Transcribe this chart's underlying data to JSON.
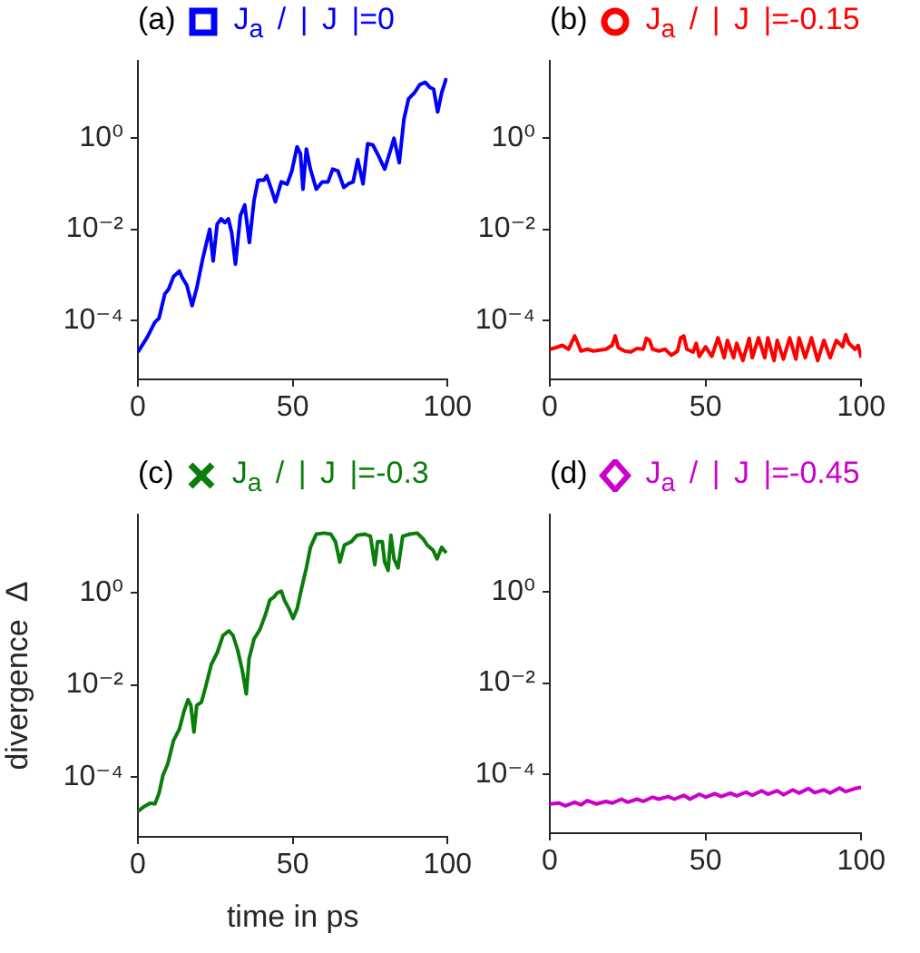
{
  "chart_data": [
    {
      "type": "line",
      "title": "(a)",
      "legend": "top",
      "log": "y",
      "xlim": [
        0,
        100
      ],
      "xticks": [
        0,
        50,
        100
      ],
      "ylim": [
        5e-06,
        50
      ],
      "yticks": [
        {
          "value": 0.0001,
          "label": "10⁻⁴"
        },
        {
          "value": 0.01,
          "label": "10⁻²"
        },
        {
          "value": 1,
          "label": "10⁰"
        }
      ],
      "series": [
        {
          "name": "J$_{a}$ / | J |=0",
          "color": "#0000ff",
          "x": [
            0,
            3,
            5.5,
            6.8,
            8.7,
            9.9,
            11.5,
            13.4,
            14.3,
            15.8,
            17.5,
            19,
            20.9,
            23.2,
            24.3,
            25.6,
            26.9,
            28.1,
            29.2,
            30.3,
            31.5,
            33.1,
            34.5,
            36,
            37.5,
            38.8,
            40.7,
            41.6,
            43.1,
            44.4,
            46.3,
            48.2,
            49.7,
            51.4,
            52.5,
            53.3,
            54.4,
            55.7,
            57.6,
            59.5,
            61.4,
            62.9,
            64.6,
            66.5,
            68,
            69.5,
            71,
            72.7,
            74.2,
            75.9,
            77.4,
            79.7,
            81.2,
            82.7,
            84.4,
            85.9,
            87.4,
            89.3,
            91,
            92.8,
            94.4,
            95.5,
            96.8,
            98.1,
            99.6
          ],
          "values": [
            2e-05,
            4.2e-05,
            9.1e-05,
            0.00011,
            0.00038,
            0.00048,
            0.00091,
            0.0012,
            0.00087,
            0.00059,
            0.00021,
            0.00051,
            0.0022,
            0.01,
            0.002,
            0.013,
            0.017,
            0.014,
            0.017,
            0.0083,
            0.0017,
            0.02,
            0.034,
            0.0051,
            0.043,
            0.12,
            0.12,
            0.15,
            0.076,
            0.04,
            0.11,
            0.098,
            0.19,
            0.65,
            0.45,
            0.076,
            0.58,
            0.21,
            0.076,
            0.11,
            0.11,
            0.21,
            0.19,
            0.083,
            0.1,
            0.11,
            0.34,
            0.1,
            0.76,
            0.71,
            0.45,
            0.21,
            0.45,
            1.0,
            0.29,
            2.6,
            7.4,
            10,
            15,
            17,
            13,
            12,
            3.8,
            10,
            21
          ]
        }
      ]
    },
    {
      "type": "line",
      "title": "(b)",
      "legend": "top",
      "log": "y",
      "xlim": [
        0,
        100
      ],
      "xticks": [
        0,
        50,
        100
      ],
      "ylim": [
        5e-06,
        50
      ],
      "yticks": [
        {
          "value": 0.0001,
          "label": "10⁻⁴"
        },
        {
          "value": 0.01,
          "label": "10⁻²"
        },
        {
          "value": 1,
          "label": "10⁰"
        }
      ],
      "series": [
        {
          "name": "J$_{a}$ / | J |=-0.15",
          "color": "#ff0000",
          "x": [
            0,
            2,
            4,
            6,
            8,
            9,
            10,
            12,
            14,
            16,
            18,
            20,
            21,
            22,
            24,
            26,
            28,
            30,
            31,
            32,
            33,
            35,
            37,
            39,
            41,
            42,
            43,
            44,
            46,
            47,
            48,
            50,
            52,
            54,
            56,
            57,
            59,
            60,
            62,
            64,
            65,
            67,
            69,
            70,
            72,
            73,
            75,
            77,
            79,
            80,
            82,
            84,
            86,
            88,
            90,
            92,
            94,
            95,
            96,
            98,
            99,
            100
          ],
          "values": [
            2.3e-05,
            2.5e-05,
            2.8e-05,
            2.3e-05,
            4.5e-05,
            3.1e-05,
            2.1e-05,
            2.3e-05,
            2.1e-05,
            2.2e-05,
            2.3e-05,
            2.8e-05,
            4.5e-05,
            2.5e-05,
            2.1e-05,
            2e-05,
            2.4e-05,
            2.3e-05,
            4e-05,
            3.6e-05,
            2.3e-05,
            2.1e-05,
            2.3e-05,
            1.7e-05,
            2.1e-05,
            4.1e-05,
            4.5e-05,
            2.3e-05,
            2e-05,
            3.1e-05,
            1.6e-05,
            2.6e-05,
            1.6e-05,
            4.1e-05,
            1.5e-05,
            3.6e-05,
            1.5e-05,
            3.1e-05,
            1.3e-05,
            4e-05,
            1.5e-05,
            4.1e-05,
            1.5e-05,
            4.1e-05,
            1.3e-05,
            3.6e-05,
            1.4e-05,
            4.1e-05,
            1.4e-05,
            4.1e-05,
            1.5e-05,
            4.1e-05,
            1.3e-05,
            3.6e-05,
            1.5e-05,
            3.6e-05,
            2.6e-05,
            4.8e-05,
            3.1e-05,
            2.3e-05,
            2.8e-05,
            1.5e-05
          ]
        }
      ]
    },
    {
      "type": "line",
      "title": "(c)",
      "legend": "top",
      "log": "y",
      "xlabel": "time in ps",
      "ylabel": "divergence  Δ",
      "xlim": [
        0,
        100
      ],
      "xticks": [
        0,
        50,
        100
      ],
      "ylim": [
        5e-06,
        50
      ],
      "yticks": [
        {
          "value": 0.0001,
          "label": "10⁻⁴"
        },
        {
          "value": 0.01,
          "label": "10⁻²"
        },
        {
          "value": 1,
          "label": "10⁰"
        }
      ],
      "series": [
        {
          "name": "J$_{a}$ / | J |=-0.3",
          "color": "#0a7d0a",
          "x": [
            0,
            2.1,
            4,
            5.5,
            6.8,
            8.1,
            9.6,
            11.5,
            13.4,
            14.9,
            16.2,
            17.1,
            18.1,
            19,
            20.5,
            21.8,
            23.7,
            25.6,
            27.5,
            29.4,
            30.7,
            32.2,
            33.7,
            35,
            35.9,
            37.5,
            39.4,
            41.2,
            42.6,
            43.9,
            45,
            46.3,
            47.3,
            48.8,
            50.1,
            51.4,
            52.9,
            54.4,
            55.7,
            57.6,
            60.1,
            62.3,
            63.8,
            65.2,
            66.7,
            68.9,
            70.8,
            73.3,
            75.1,
            76.5,
            77.4,
            78.9,
            79.7,
            80.8,
            81.7,
            82.7,
            84,
            85.5,
            87.8,
            90.2,
            92.1,
            93.4,
            95.3,
            96.6,
            98.1,
            99.6
          ],
          "values": [
            1.8e-05,
            2.3e-05,
            2.7e-05,
            2.6e-05,
            4.4e-05,
            0.00011,
            0.00019,
            0.00062,
            0.0011,
            0.0027,
            0.0048,
            0.0036,
            0.00095,
            0.0036,
            0.0042,
            0.0087,
            0.028,
            0.05,
            0.12,
            0.15,
            0.12,
            0.058,
            0.021,
            0.0064,
            0.037,
            0.1,
            0.16,
            0.34,
            0.7,
            0.81,
            1.0,
            1.1,
            0.7,
            0.45,
            0.28,
            0.45,
            1.3,
            3.5,
            9.8,
            19,
            20,
            19,
            13,
            4.7,
            11,
            13,
            18,
            19,
            17,
            4.1,
            13,
            13,
            4.7,
            3.1,
            18,
            5.5,
            3.5,
            17,
            19,
            20,
            15,
            11,
            8.5,
            5.5,
            9.8,
            7.4
          ]
        }
      ]
    },
    {
      "type": "line",
      "title": "(d)",
      "legend": "top",
      "log": "y",
      "xlim": [
        0,
        100
      ],
      "xticks": [
        0,
        50,
        100
      ],
      "ylim": [
        5e-06,
        50
      ],
      "yticks": [
        {
          "value": 0.0001,
          "label": "10⁻⁴"
        },
        {
          "value": 0.01,
          "label": "10⁻²"
        },
        {
          "value": 1,
          "label": "10⁰"
        }
      ],
      "series": [
        {
          "name": "J$_{a}$ / | J |=-0.45",
          "color": "#cc00cc",
          "x": [
            0,
            3,
            5,
            8,
            10,
            12,
            15,
            18,
            20,
            23,
            25,
            28,
            30,
            33,
            35,
            38,
            40,
            43,
            45,
            48,
            50,
            53,
            55,
            58,
            60,
            63,
            65,
            68,
            70,
            73,
            75,
            78,
            80,
            83,
            85,
            88,
            90,
            93,
            95,
            98,
            100
          ],
          "values": [
            2.2e-05,
            2.3e-05,
            2e-05,
            2.4e-05,
            2.1e-05,
            2.6e-05,
            2.2e-05,
            2.5e-05,
            2.3e-05,
            2.8e-05,
            2.4e-05,
            2.8e-05,
            2.5e-05,
            3.1e-05,
            2.8e-05,
            3.2e-05,
            2.8e-05,
            3.4e-05,
            2.8e-05,
            3.6e-05,
            3.1e-05,
            3.7e-05,
            3.2e-05,
            3.8e-05,
            3.3e-05,
            4e-05,
            3.4e-05,
            4.3e-05,
            3.6e-05,
            4.3e-05,
            3.5e-05,
            4.5e-05,
            3.8e-05,
            4.8e-05,
            3.9e-05,
            4.5e-05,
            3.8e-05,
            4.9e-05,
            4.1e-05,
            4.8e-05,
            5.1e-05
          ]
        }
      ]
    }
  ]
}
